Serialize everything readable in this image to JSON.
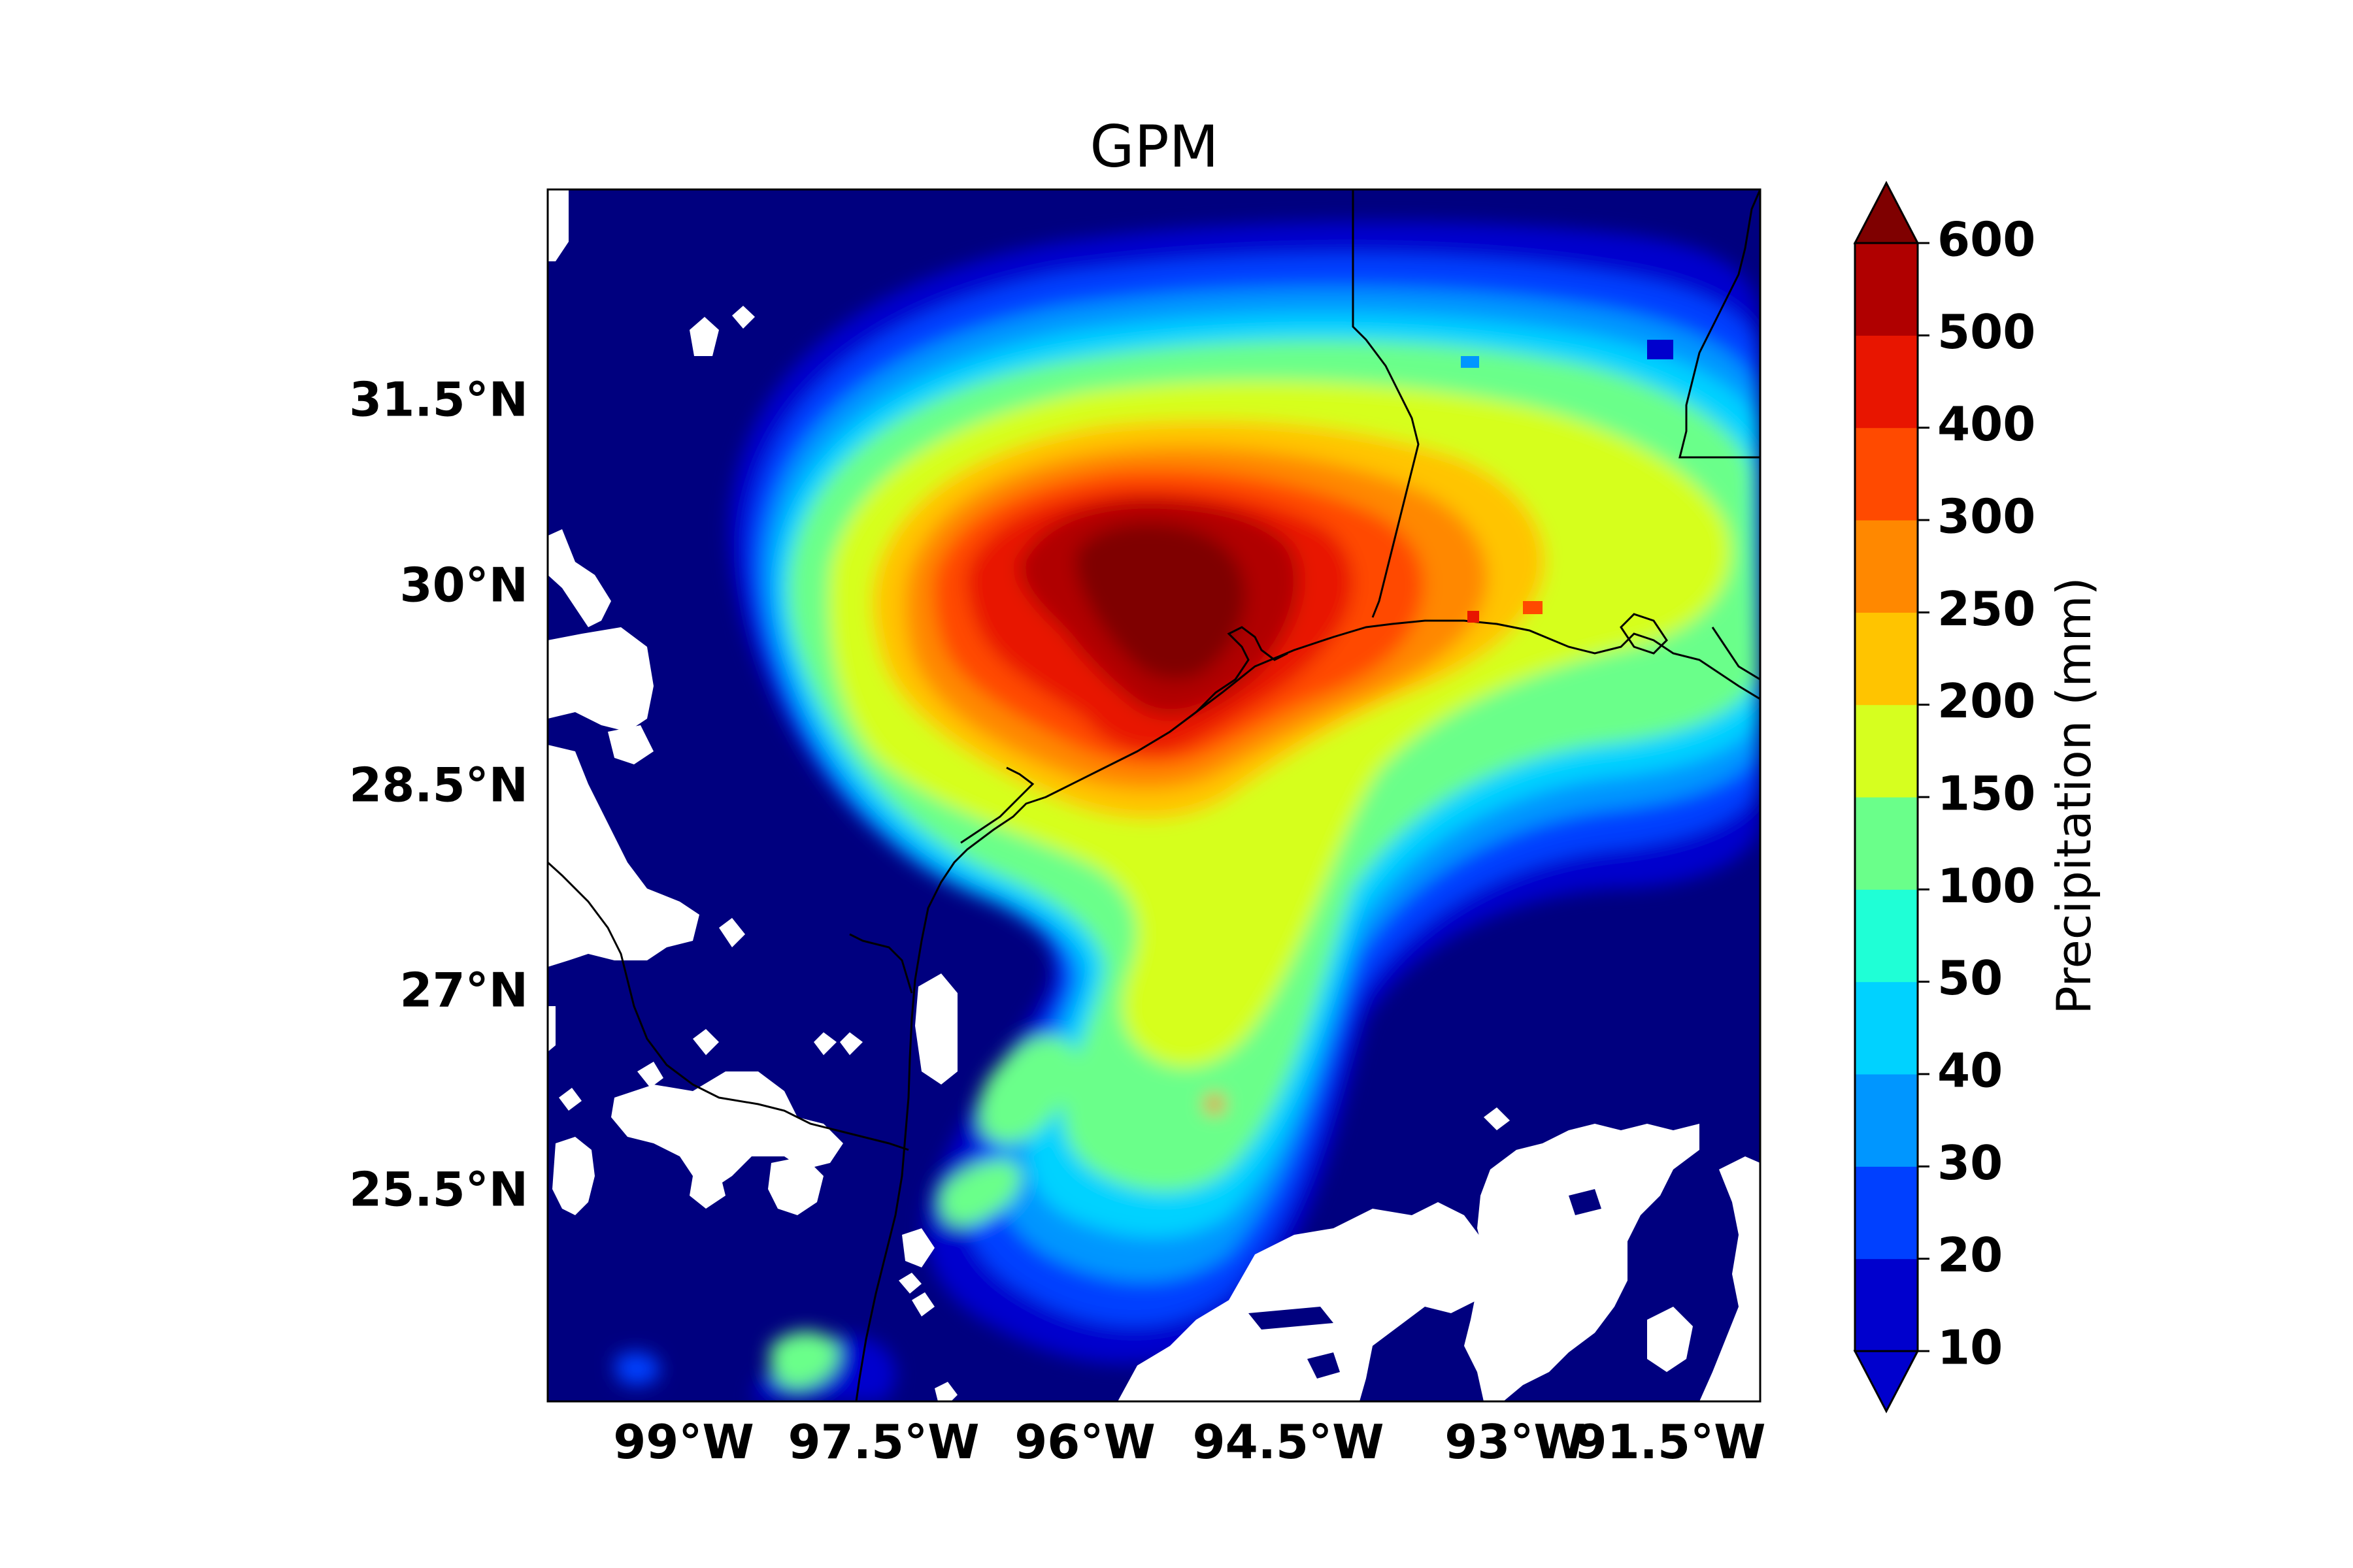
{
  "title": "GPM",
  "map": {
    "lon_range": [
      -100,
      -90.7
    ],
    "lat_range": [
      24.0,
      33.0
    ],
    "lat_ticks": [
      {
        "value": 31.5,
        "label": "31.5°N"
      },
      {
        "value": 30.0,
        "label": "30°N"
      },
      {
        "value": 28.5,
        "label": "28.5°N"
      },
      {
        "value": 27.0,
        "label": "27°N"
      },
      {
        "value": 25.5,
        "label": "25.5°N"
      }
    ],
    "lon_ticks": [
      {
        "value": -99.0,
        "label": "99°W"
      },
      {
        "value": -97.5,
        "label": "97.5°W"
      },
      {
        "value": -96.0,
        "label": "96°W"
      },
      {
        "value": -94.5,
        "label": "94.5°W"
      },
      {
        "value": -93.0,
        "label": "93°W"
      },
      {
        "value": -91.5,
        "label": "91.5°W"
      }
    ],
    "background_color": "#00007f",
    "missing_color": "#ffffff",
    "coastline_color": "#000000"
  },
  "chart_data": {
    "type": "heatmap",
    "title": "GPM",
    "variable_label": "Precipitation (mm)",
    "units": "mm",
    "levels": [
      10,
      20,
      30,
      40,
      50,
      100,
      150,
      200,
      250,
      300,
      400,
      500,
      600
    ],
    "level_colors": [
      "#0000cd",
      "#0040ff",
      "#0096ff",
      "#00d2ff",
      "#1fffd6",
      "#6aff8a",
      "#d6ff1f",
      "#ffc400",
      "#ff8800",
      "#ff4a00",
      "#e81500",
      "#b00000",
      "#7f0000"
    ],
    "under_color": "#00007f",
    "over_color": "#7f0000",
    "colorbar_extend": "both",
    "peak_value_mm": 600,
    "peak_location": {
      "lon": -95.3,
      "lat": 29.8
    }
  }
}
